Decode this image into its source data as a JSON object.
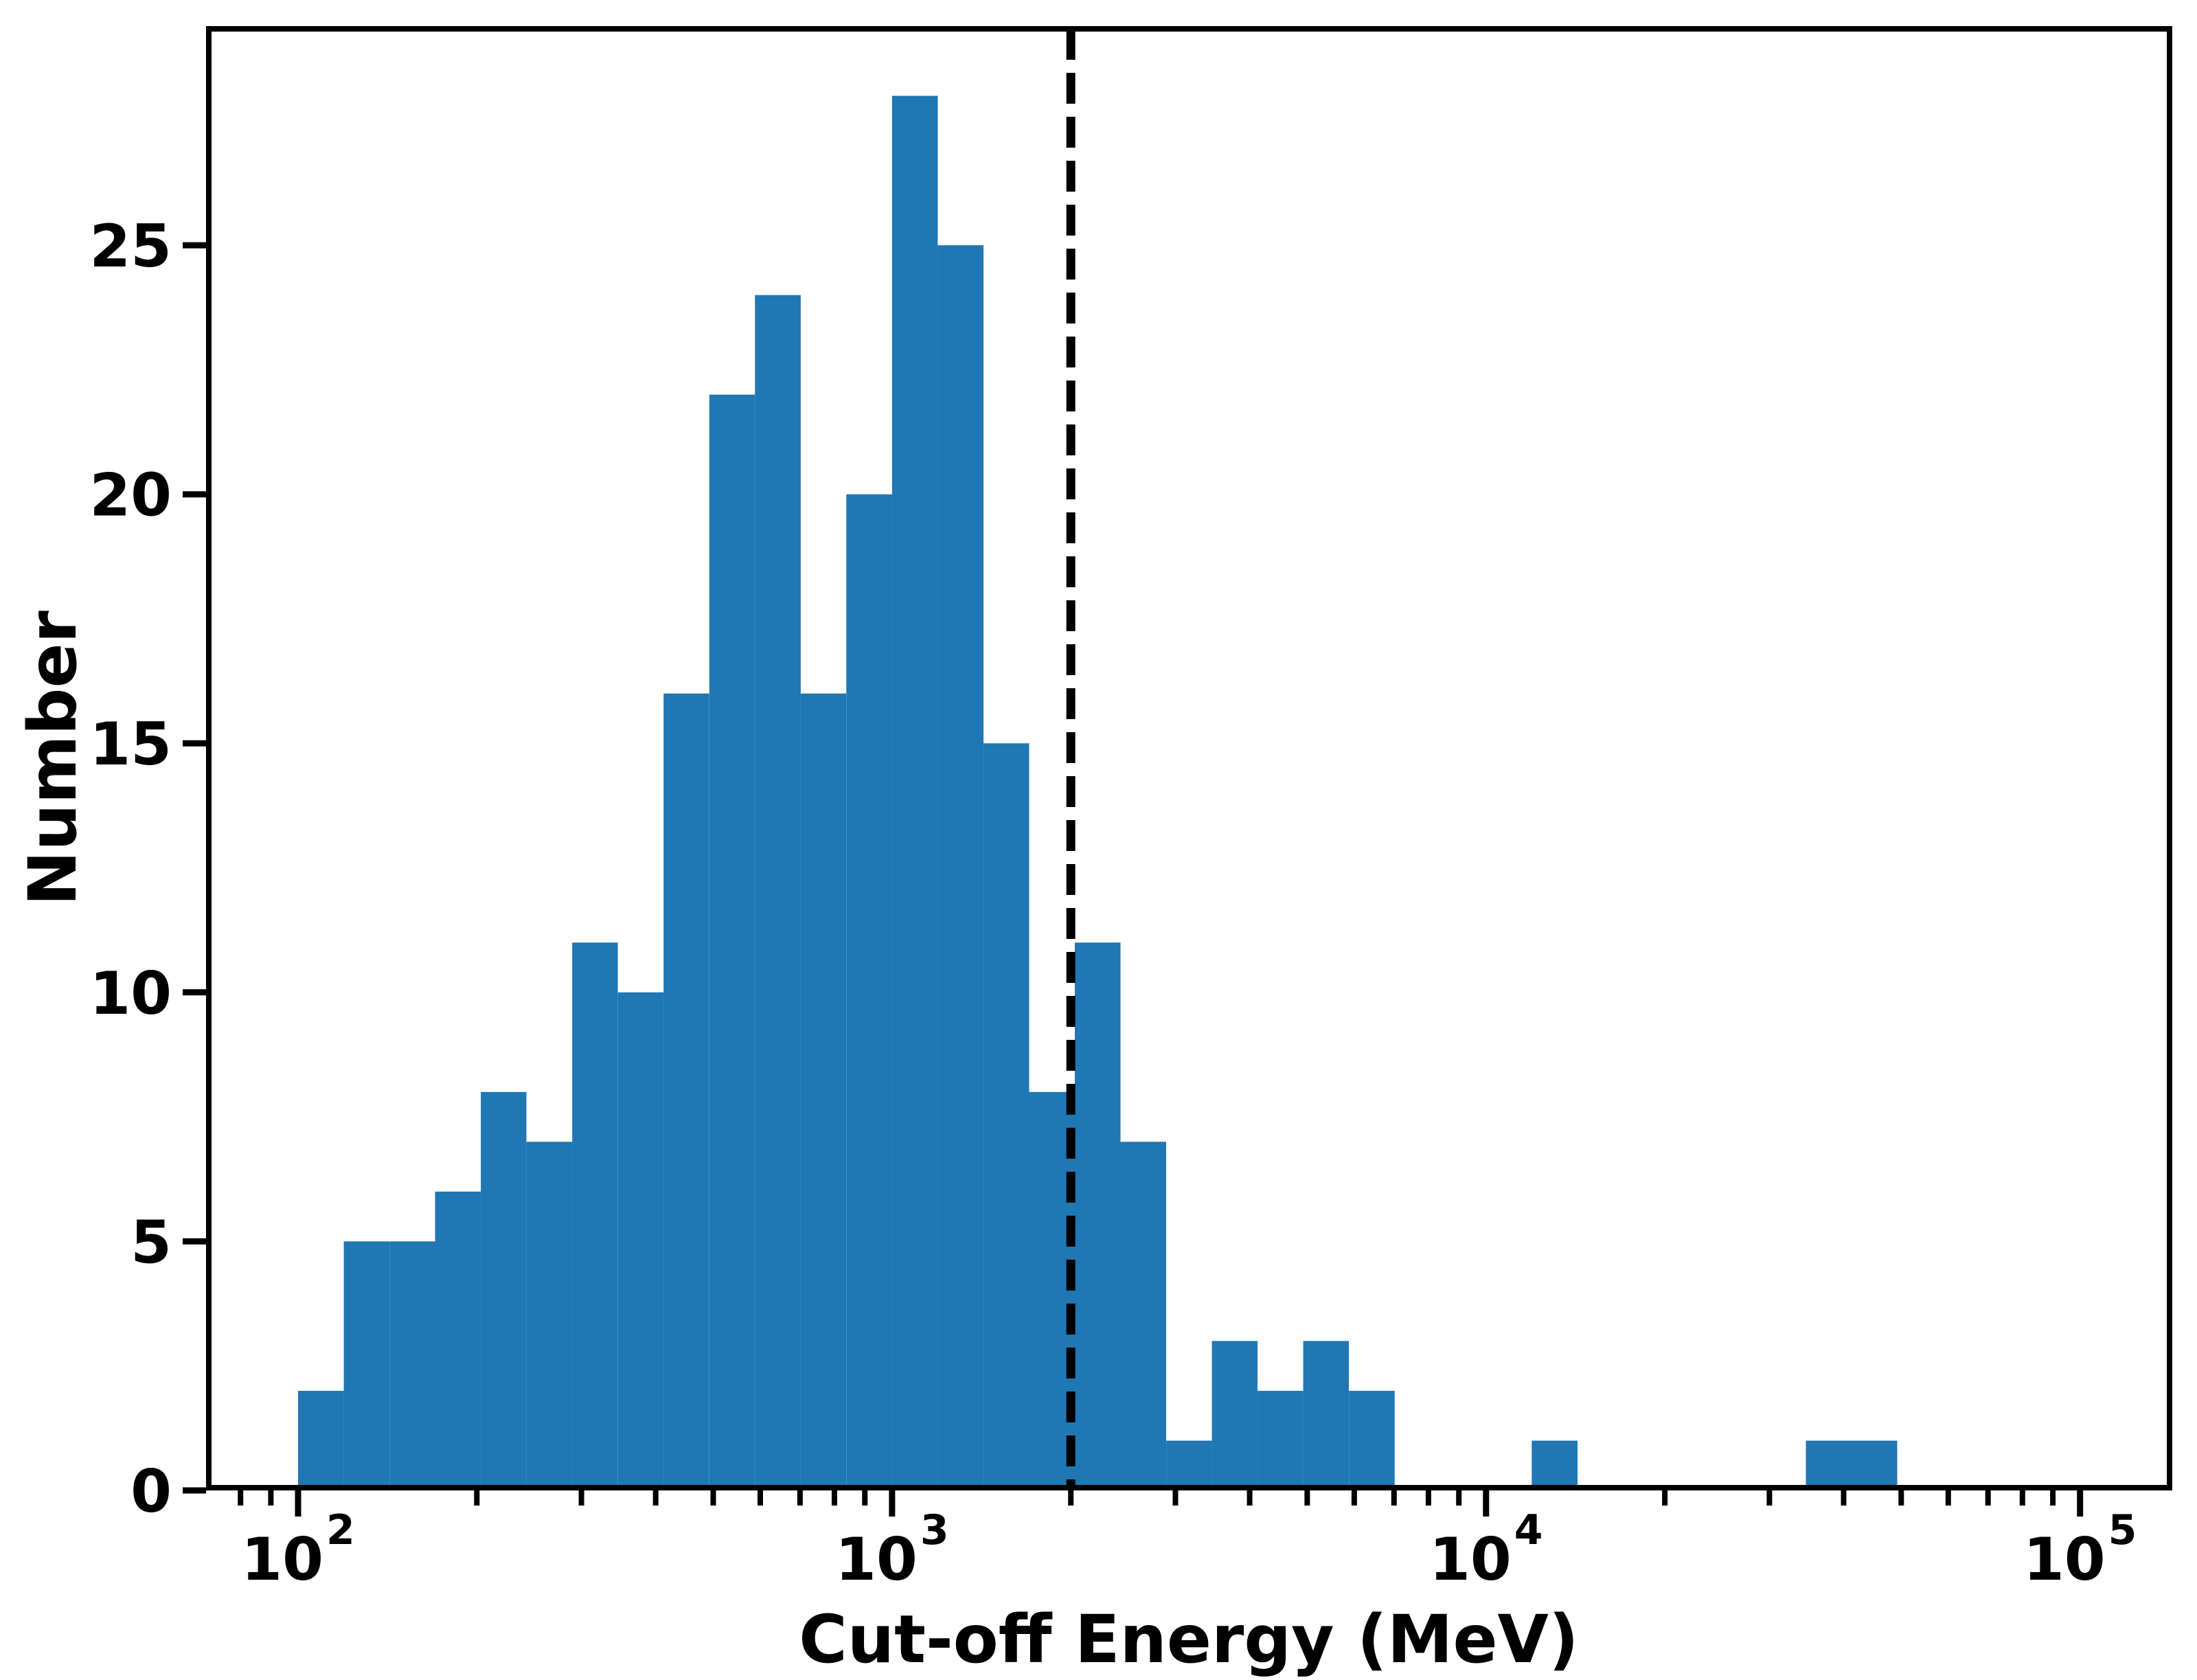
{
  "chart_data": {
    "type": "bar",
    "subtype": "histogram",
    "title": "",
    "xlabel": "Cut-off Energy (MeV)",
    "ylabel": "Number",
    "xscale": "log",
    "xlim": [
      70,
      143000
    ],
    "ylim": [
      0,
      29.4
    ],
    "grid": "off",
    "legend_position": "none",
    "bar_color": "#1f77b4",
    "axis_color": "#000000",
    "background_color": "#ffffff",
    "bin_edges_mev": [
      100,
      119.4,
      142.6,
      170.1,
      203.1,
      242.4,
      289.5,
      345.5,
      412.5,
      492.4,
      587.8,
      701.9,
      837.5,
      1000,
      1193.8,
      1425.6,
      1701.3,
      2031.0,
      2424.5,
      2894.3,
      3455.2,
      4124.6,
      4923.9,
      5877.8,
      7016.9,
      8376.8,
      10000,
      11938,
      14256,
      17013,
      20310,
      24245,
      28943,
      34552,
      41246,
      49239,
      58780,
      70169,
      83768,
      100000
    ],
    "counts": [
      2,
      5,
      5,
      6,
      8,
      7,
      11,
      10,
      16,
      22,
      24,
      16,
      20,
      28,
      25,
      15,
      8,
      11,
      7,
      1,
      3,
      2,
      3,
      2,
      0,
      0,
      0,
      1,
      0,
      0,
      0,
      0,
      0,
      1,
      1,
      0,
      0,
      0,
      0
    ],
    "total_count": 260,
    "vline": {
      "value_mev": 2000,
      "style": "dashed",
      "color": "#000000"
    },
    "x_ticks": [
      {
        "value": 100,
        "mantissa": "10",
        "exponent": "2"
      },
      {
        "value": 1000,
        "mantissa": "10",
        "exponent": "3"
      },
      {
        "value": 10000,
        "mantissa": "10",
        "exponent": "4"
      },
      {
        "value": 100000,
        "mantissa": "10",
        "exponent": "5"
      }
    ],
    "x_minor_tick_mantissas": [
      2,
      3,
      4,
      5,
      6,
      7,
      8,
      9
    ],
    "y_ticks": [
      0,
      5,
      10,
      15,
      20,
      25
    ]
  }
}
